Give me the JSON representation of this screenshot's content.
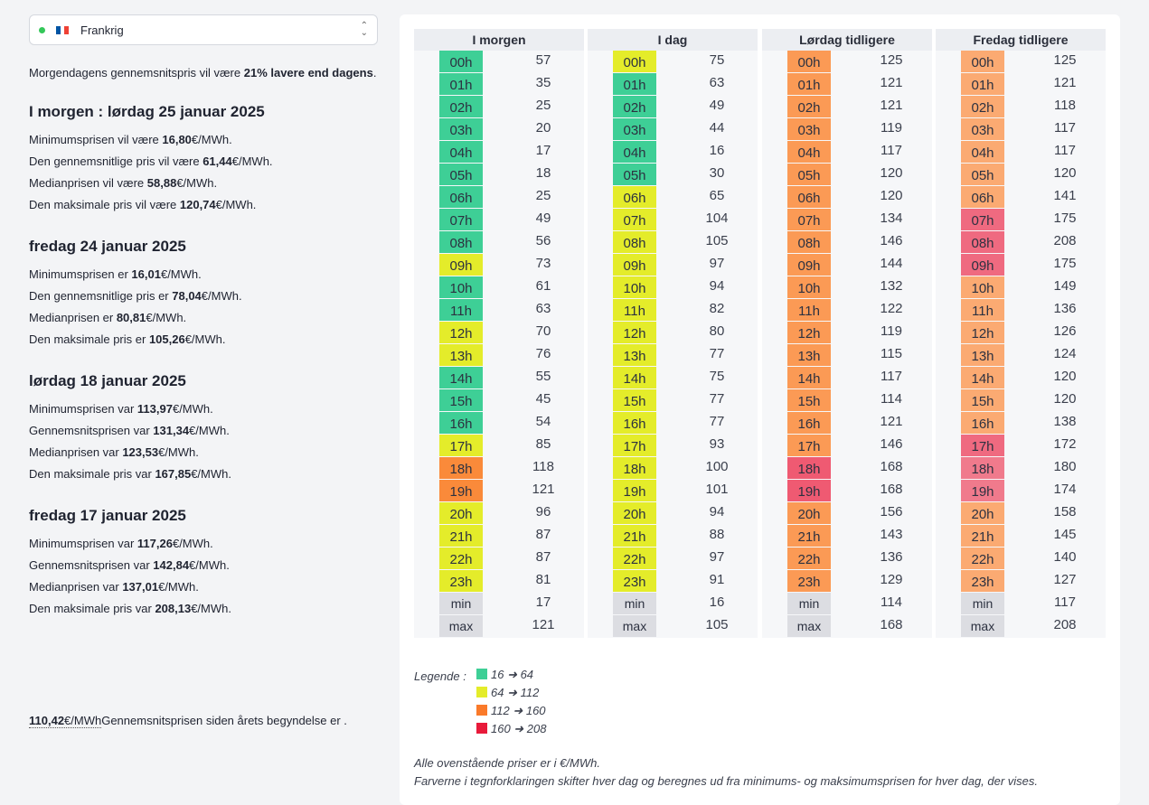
{
  "country_selector": {
    "label": "Frankrig",
    "status_color": "#34c759",
    "flag_colors": [
      "#0055a4",
      "#ffffff",
      "#ef4135"
    ]
  },
  "intro": {
    "prefix": "Morgendagens gennemsnitspris vil være ",
    "highlight": "21% lavere end dagens",
    "suffix": "."
  },
  "summaries": [
    {
      "title": "I morgen : lørdag 25 januar 2025",
      "lines": [
        {
          "prefix": "Minimumsprisen vil være ",
          "value": "16,80",
          "suffix": "€/MWh."
        },
        {
          "prefix": "Den gennemsnitlige pris vil være ",
          "value": "61,44",
          "suffix": "€/MWh."
        },
        {
          "prefix": "Medianprisen vil være ",
          "value": "58,88",
          "suffix": "€/MWh."
        },
        {
          "prefix": "Den maksimale pris vil være ",
          "value": "120,74",
          "suffix": "€/MWh."
        }
      ]
    },
    {
      "title": "fredag 24 januar 2025",
      "lines": [
        {
          "prefix": "Minimumsprisen er ",
          "value": "16,01",
          "suffix": "€/MWh."
        },
        {
          "prefix": "Den gennemsnitlige pris er ",
          "value": "78,04",
          "suffix": "€/MWh."
        },
        {
          "prefix": "Medianprisen er ",
          "value": "80,81",
          "suffix": "€/MWh."
        },
        {
          "prefix": "Den maksimale pris er ",
          "value": "105,26",
          "suffix": "€/MWh."
        }
      ]
    },
    {
      "title": "lørdag 18 januar 2025",
      "lines": [
        {
          "prefix": "Minimumsprisen var ",
          "value": "113,97",
          "suffix": "€/MWh."
        },
        {
          "prefix": "Gennemsnitsprisen var ",
          "value": "131,34",
          "suffix": "€/MWh."
        },
        {
          "prefix": "Medianprisen var ",
          "value": "123,53",
          "suffix": "€/MWh."
        },
        {
          "prefix": "Den maksimale pris var ",
          "value": "167,85",
          "suffix": "€/MWh."
        }
      ]
    },
    {
      "title": "fredag 17 januar 2025",
      "lines": [
        {
          "prefix": "Minimumsprisen var ",
          "value": "117,26",
          "suffix": "€/MWh."
        },
        {
          "prefix": "Gennemsnitsprisen var ",
          "value": "142,84",
          "suffix": "€/MWh."
        },
        {
          "prefix": "Medianprisen var ",
          "value": "137,01",
          "suffix": "€/MWh."
        },
        {
          "prefix": "Den maksimale pris var ",
          "value": "208,13",
          "suffix": "€/MWh."
        }
      ]
    }
  ],
  "ytd": {
    "value": "110,42",
    "unit": "€/MWh",
    "text": "Gennemsnitsprisen siden årets begyndelse er ."
  },
  "hours": [
    "00h",
    "01h",
    "02h",
    "03h",
    "04h",
    "05h",
    "06h",
    "07h",
    "08h",
    "09h",
    "10h",
    "11h",
    "12h",
    "13h",
    "14h",
    "15h",
    "16h",
    "17h",
    "18h",
    "19h",
    "20h",
    "21h",
    "22h",
    "23h"
  ],
  "min_label": "min",
  "max_label": "max",
  "columns": [
    {
      "title": "I morgen",
      "values": [
        57,
        35,
        25,
        20,
        17,
        18,
        25,
        49,
        56,
        73,
        61,
        63,
        70,
        76,
        55,
        45,
        54,
        85,
        118,
        121,
        96,
        87,
        87,
        81
      ],
      "colors": [
        "#3ecf96",
        "#3ecf96",
        "#3ecf96",
        "#3ecf96",
        "#3ecf96",
        "#3ecf96",
        "#3ecf96",
        "#3ecf96",
        "#3ecf96",
        "#e4ec2a",
        "#3ecf96",
        "#3ecf96",
        "#e4ec2a",
        "#e4ec2a",
        "#3ecf96",
        "#3ecf96",
        "#3ecf96",
        "#e4ec2a",
        "#fa8a3a",
        "#fa8a3a",
        "#e4ec2a",
        "#e4ec2a",
        "#e4ec2a",
        "#e4ec2a"
      ],
      "min": 17,
      "max": 121
    },
    {
      "title": "I dag",
      "values": [
        75,
        63,
        49,
        44,
        16,
        30,
        65,
        104,
        105,
        97,
        94,
        82,
        80,
        77,
        75,
        77,
        77,
        93,
        100,
        101,
        94,
        88,
        97,
        91
      ],
      "colors": [
        "#e4ec2a",
        "#3ecf96",
        "#3ecf96",
        "#3ecf96",
        "#3ecf96",
        "#3ecf96",
        "#e4ec2a",
        "#e4ec2a",
        "#e4ec2a",
        "#e4ec2a",
        "#e4ec2a",
        "#e4ec2a",
        "#e4ec2a",
        "#e4ec2a",
        "#e4ec2a",
        "#e4ec2a",
        "#e4ec2a",
        "#e4ec2a",
        "#e4ec2a",
        "#e4ec2a",
        "#e4ec2a",
        "#e4ec2a",
        "#e4ec2a",
        "#e4ec2a"
      ],
      "min": 16,
      "max": 105
    },
    {
      "title": "Lørdag tidligere",
      "values": [
        125,
        121,
        121,
        119,
        117,
        120,
        120,
        134,
        146,
        144,
        132,
        122,
        119,
        115,
        117,
        114,
        121,
        146,
        168,
        168,
        156,
        143,
        136,
        129
      ],
      "colors": [
        "#fb9a55",
        "#fb9a55",
        "#fb9a55",
        "#fb9a55",
        "#fb9a55",
        "#fb9a55",
        "#fb9a55",
        "#fb9a55",
        "#fb9a55",
        "#fb9a55",
        "#fb9a55",
        "#fb9a55",
        "#fb9a55",
        "#fb9a55",
        "#fb9a55",
        "#fb9a55",
        "#fb9a55",
        "#fb9a55",
        "#ef5a72",
        "#ef5a72",
        "#fb9a55",
        "#fb9a55",
        "#fb9a55",
        "#fb9a55"
      ],
      "min": 114,
      "max": 168
    },
    {
      "title": "Fredag tidligere",
      "values": [
        125,
        121,
        118,
        117,
        117,
        120,
        141,
        175,
        208,
        175,
        149,
        136,
        126,
        124,
        120,
        120,
        138,
        172,
        180,
        174,
        158,
        145,
        140,
        127
      ],
      "colors": [
        "#fbaa72",
        "#fbaa72",
        "#fbaa72",
        "#fbaa72",
        "#fbaa72",
        "#fbaa72",
        "#fbaa72",
        "#ef6a80",
        "#ef6a80",
        "#ef6a80",
        "#fbaa72",
        "#fbaa72",
        "#fbaa72",
        "#fbaa72",
        "#fbaa72",
        "#fbaa72",
        "#fbaa72",
        "#ef6a80",
        "#f07a8c",
        "#f07a8c",
        "#fbaa72",
        "#fbaa72",
        "#fbaa72",
        "#fbaa72"
      ],
      "min": 117,
      "max": 208
    }
  ],
  "legend": {
    "label": "Legende :",
    "items": [
      {
        "text": "16 ➜ 64",
        "color": "#3ecf96"
      },
      {
        "text": "64 ➜ 112",
        "color": "#e4ec2a"
      },
      {
        "text": "112 ➜ 160",
        "color": "#fa7a2a"
      },
      {
        "text": "160 ➜ 208",
        "color": "#e81a3a"
      }
    ]
  },
  "notes": [
    "Alle ovenstående priser er i €/MWh.",
    "Farverne i tegnforklaringen skifter hver dag og beregnes ud fra minimums- og maksimumsprisen for hver dag, der vises."
  ]
}
